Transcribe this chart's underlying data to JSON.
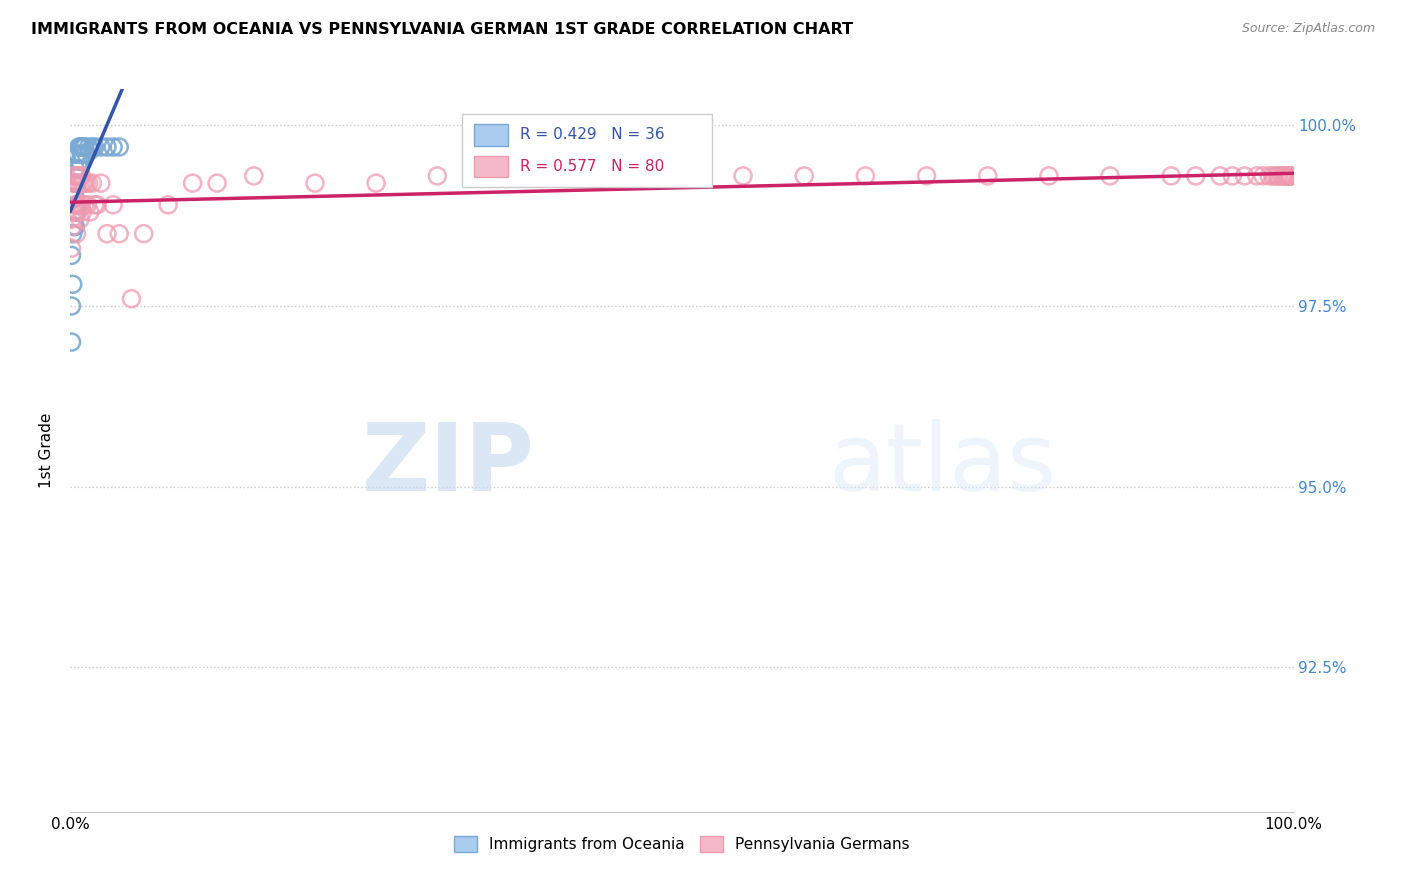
{
  "title": "IMMIGRANTS FROM OCEANIA VS PENNSYLVANIA GERMAN 1ST GRADE CORRELATION CHART",
  "source": "Source: ZipAtlas.com",
  "ylabel": "1st Grade",
  "y_tick_labels": [
    "100.0%",
    "97.5%",
    "95.0%",
    "92.5%"
  ],
  "y_tick_values": [
    1.0,
    0.975,
    0.95,
    0.925
  ],
  "legend_label_blue": "Immigrants from Oceania",
  "legend_label_pink": "Pennsylvania Germans",
  "R_blue": 0.429,
  "N_blue": 36,
  "R_pink": 0.577,
  "N_pink": 80,
  "color_blue": "#7aaad4",
  "color_pink": "#f09ab0",
  "line_color_blue": "#3355aa",
  "line_color_pink": "#cc2266",
  "background_color": "#ffffff",
  "watermark_zip": "ZIP",
  "watermark_atlas": "atlas",
  "blue_x": [
    0.001,
    0.001,
    0.001,
    0.002,
    0.002,
    0.002,
    0.003,
    0.003,
    0.004,
    0.004,
    0.004,
    0.005,
    0.005,
    0.005,
    0.006,
    0.006,
    0.006,
    0.007,
    0.007,
    0.008,
    0.008,
    0.009,
    0.009,
    0.01,
    0.01,
    0.011,
    0.012,
    0.013,
    0.015,
    0.016,
    0.018,
    0.02,
    0.025,
    0.03,
    0.035,
    0.04
  ],
  "blue_y": [
    0.982,
    0.975,
    0.97,
    0.99,
    0.985,
    0.978,
    0.992,
    0.986,
    0.994,
    0.99,
    0.986,
    0.996,
    0.992,
    0.988,
    0.996,
    0.993,
    0.989,
    0.997,
    0.994,
    0.997,
    0.995,
    0.997,
    0.996,
    0.997,
    0.996,
    0.997,
    0.997,
    0.996,
    0.997,
    0.9965,
    0.997,
    0.997,
    0.997,
    0.997,
    0.997,
    0.997
  ],
  "pink_x": [
    0.001,
    0.001,
    0.002,
    0.002,
    0.003,
    0.003,
    0.004,
    0.004,
    0.005,
    0.005,
    0.005,
    0.006,
    0.006,
    0.007,
    0.007,
    0.008,
    0.008,
    0.009,
    0.009,
    0.01,
    0.01,
    0.011,
    0.012,
    0.013,
    0.014,
    0.015,
    0.016,
    0.018,
    0.02,
    0.022,
    0.025,
    0.03,
    0.035,
    0.04,
    0.05,
    0.06,
    0.08,
    0.1,
    0.12,
    0.15,
    0.2,
    0.25,
    0.3,
    0.35,
    0.4,
    0.5,
    0.55,
    0.6,
    0.65,
    0.7,
    0.75,
    0.8,
    0.85,
    0.9,
    0.92,
    0.94,
    0.95,
    0.96,
    0.97,
    0.975,
    0.98,
    0.983,
    0.985,
    0.987,
    0.988,
    0.99,
    0.991,
    0.992,
    0.993,
    0.994,
    0.995,
    0.996,
    0.997,
    0.997,
    0.997,
    0.997,
    0.997,
    0.997,
    0.997,
    0.997
  ],
  "pink_y": [
    0.987,
    0.983,
    0.99,
    0.986,
    0.992,
    0.988,
    0.993,
    0.989,
    0.993,
    0.989,
    0.985,
    0.992,
    0.988,
    0.993,
    0.989,
    0.992,
    0.987,
    0.993,
    0.989,
    0.992,
    0.988,
    0.992,
    0.989,
    0.992,
    0.989,
    0.992,
    0.988,
    0.992,
    0.989,
    0.989,
    0.992,
    0.985,
    0.989,
    0.985,
    0.976,
    0.985,
    0.989,
    0.992,
    0.992,
    0.993,
    0.992,
    0.992,
    0.993,
    0.993,
    0.993,
    0.993,
    0.993,
    0.993,
    0.993,
    0.993,
    0.993,
    0.993,
    0.993,
    0.993,
    0.993,
    0.993,
    0.993,
    0.993,
    0.993,
    0.993,
    0.993,
    0.993,
    0.993,
    0.993,
    0.993,
    0.993,
    0.993,
    0.993,
    0.993,
    0.993,
    0.993,
    0.993,
    0.993,
    0.993,
    0.993,
    0.993,
    0.993,
    0.993,
    0.993,
    0.993
  ]
}
